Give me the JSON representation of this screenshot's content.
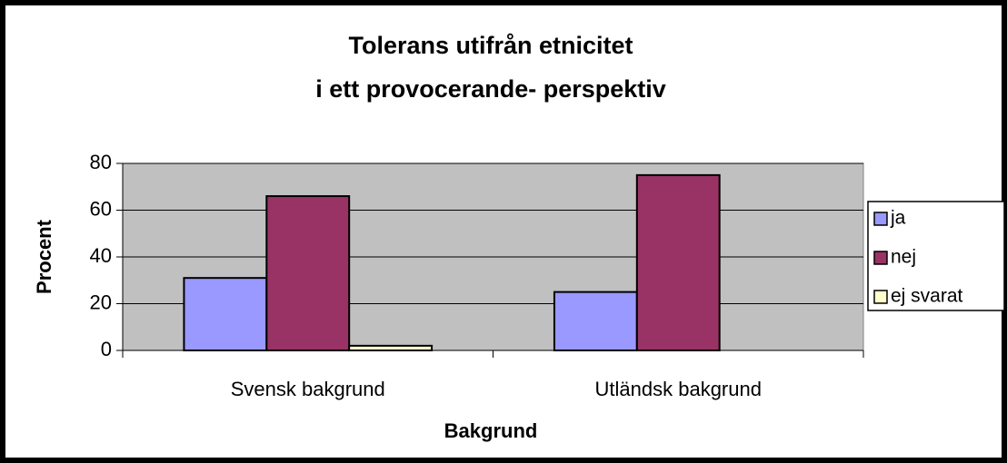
{
  "chart_data": {
    "type": "bar",
    "title": [
      "Tolerans utifrån etnicitet",
      "i ett provocerande- perspektiv"
    ],
    "x_label": "Bakgrund",
    "y_label": "Procent",
    "categories": [
      "Svensk bakgrund",
      "Utländsk bakgrund"
    ],
    "series": [
      {
        "name": "ja",
        "color": "#9999FF",
        "values": [
          31,
          25
        ]
      },
      {
        "name": "nej",
        "color": "#993366",
        "values": [
          66,
          75
        ]
      },
      {
        "name": "ej svarat",
        "color": "#FFFFCC",
        "values": [
          2,
          0
        ]
      }
    ],
    "ylim": [
      0,
      80
    ],
    "yticks": [
      0,
      20,
      40,
      60,
      80
    ],
    "grid": true,
    "legend": "right"
  }
}
